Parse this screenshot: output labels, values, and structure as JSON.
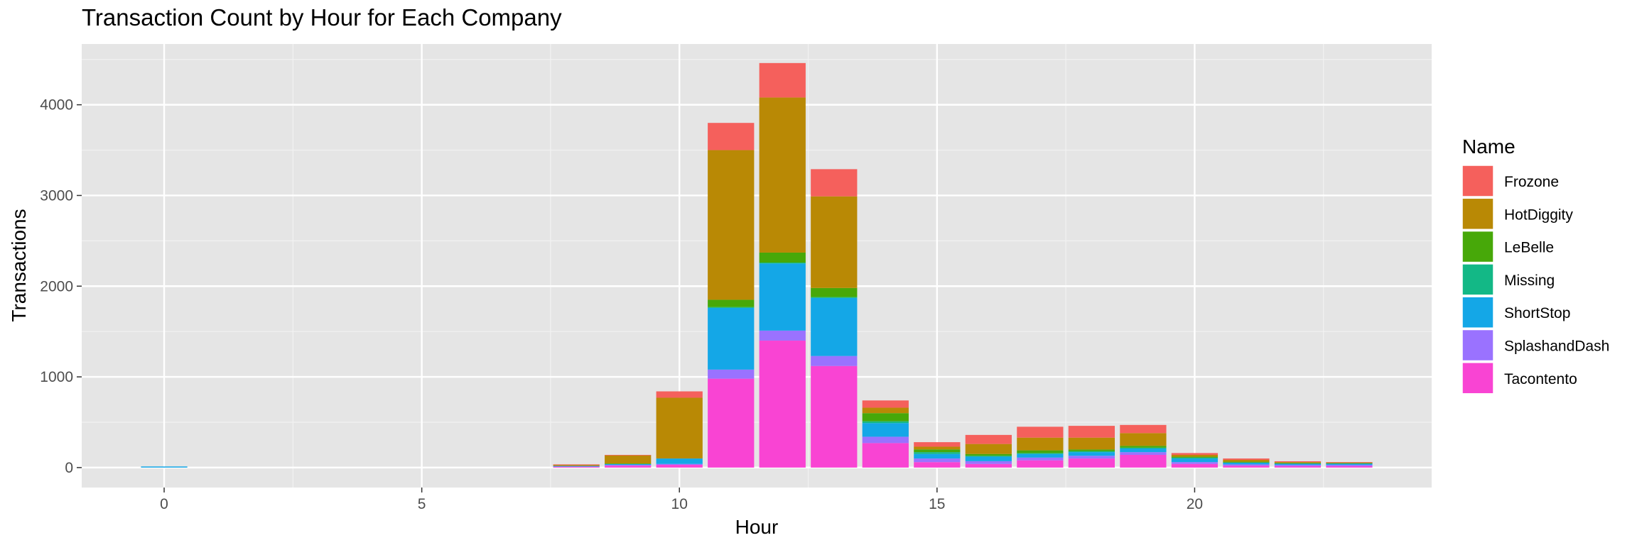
{
  "chart_data": {
    "type": "bar",
    "stacked": true,
    "title": "Transaction Count by Hour for Each Company",
    "xlabel": "Hour",
    "ylabel": "Transactions",
    "x": [
      0,
      8,
      9,
      10,
      11,
      12,
      13,
      14,
      15,
      16,
      17,
      18,
      19,
      20,
      21,
      22,
      23
    ],
    "x_ticks": [
      0,
      5,
      10,
      15,
      20
    ],
    "y_ticks": [
      0,
      1000,
      2000,
      3000,
      4000
    ],
    "xlim": [
      -1.6,
      24.6
    ],
    "ylim": [
      -220,
      4670
    ],
    "grid": true,
    "legend": {
      "title": "Name",
      "position": "right"
    },
    "series": [
      {
        "name": "Tacontento",
        "color": "#F944D3",
        "values": [
          0,
          8,
          20,
          30,
          980,
          1400,
          1120,
          270,
          60,
          40,
          80,
          100,
          140,
          40,
          20,
          15,
          15
        ]
      },
      {
        "name": "SplashandDash",
        "color": "#9A72FF",
        "values": [
          0,
          5,
          10,
          10,
          100,
          110,
          110,
          70,
          40,
          30,
          30,
          30,
          30,
          20,
          15,
          15,
          15
        ]
      },
      {
        "name": "ShortStop",
        "color": "#14A7E7",
        "values": [
          12,
          5,
          10,
          60,
          680,
          740,
          640,
          150,
          50,
          50,
          40,
          40,
          40,
          40,
          20,
          15,
          15
        ]
      },
      {
        "name": "Missing",
        "color": "#13B886",
        "values": [
          0,
          0,
          0,
          0,
          10,
          10,
          10,
          20,
          20,
          10,
          10,
          10,
          10,
          10,
          0,
          0,
          0
        ]
      },
      {
        "name": "LeBelle",
        "color": "#47A809",
        "values": [
          0,
          0,
          5,
          0,
          80,
          110,
          100,
          90,
          30,
          20,
          30,
          20,
          20,
          10,
          10,
          5,
          5
        ]
      },
      {
        "name": "HotDiggity",
        "color": "#B98905",
        "values": [
          0,
          12,
          90,
          670,
          1650,
          1710,
          1010,
          60,
          30,
          110,
          140,
          130,
          140,
          20,
          20,
          10,
          5
        ]
      },
      {
        "name": "Frozone",
        "color": "#F5605C",
        "values": [
          0,
          5,
          5,
          70,
          300,
          380,
          300,
          80,
          50,
          100,
          120,
          130,
          90,
          20,
          15,
          10,
          5
        ]
      }
    ]
  }
}
